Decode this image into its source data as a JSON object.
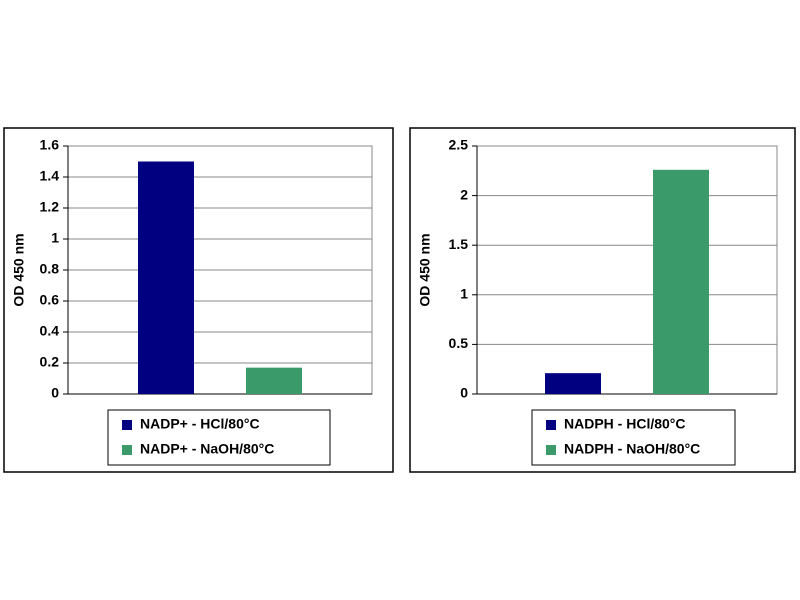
{
  "chart_data": [
    {
      "type": "bar",
      "ylabel": "OD 450 nm",
      "categories": [
        null
      ],
      "series": [
        {
          "name": "NADP+ - HCl/80°C",
          "color": "#000080",
          "values": [
            1.5
          ]
        },
        {
          "name": "NADP+ - NaOH/80°C",
          "color": "#3a9a6a",
          "values": [
            0.17
          ]
        }
      ],
      "ylim": [
        0,
        1.6
      ],
      "yticks": [
        0,
        0.2,
        0.4,
        0.6,
        0.8,
        1,
        1.2,
        1.4,
        1.6
      ],
      "grid": true
    },
    {
      "type": "bar",
      "ylabel": "OD 450 nm",
      "categories": [
        null
      ],
      "series": [
        {
          "name": "NADPH - HCl/80°C",
          "color": "#000080",
          "values": [
            0.21
          ]
        },
        {
          "name": "NADPH - NaOH/80°C",
          "color": "#3a9a6a",
          "values": [
            2.26
          ]
        }
      ],
      "ylim": [
        0,
        2.5
      ],
      "yticks": [
        0,
        0.5,
        1,
        1.5,
        2,
        2.5
      ],
      "grid": true
    }
  ]
}
